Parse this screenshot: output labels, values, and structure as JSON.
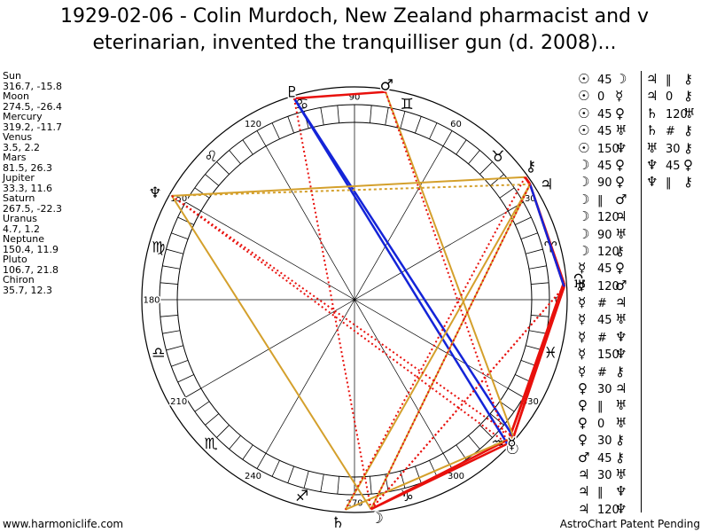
{
  "title": {
    "line1": "1929-02-06 - Colin Murdoch, New Zealand pharmacist and v",
    "line2": "eterinarian, invented the tranquilliser gun (d. 2008)..."
  },
  "planets": [
    {
      "name": "Sun",
      "pos": "316.7, -15.8"
    },
    {
      "name": "Moon",
      "pos": "274.5, -26.4"
    },
    {
      "name": "Mercury",
      "pos": "319.2, -11.7"
    },
    {
      "name": "Venus",
      "pos": "3.5, 2.2"
    },
    {
      "name": "Mars",
      "pos": "81.5, 26.3"
    },
    {
      "name": "Jupiter",
      "pos": "33.3, 11.6"
    },
    {
      "name": "Saturn",
      "pos": "267.5, -22.3"
    },
    {
      "name": "Uranus",
      "pos": "4.7, 1.2"
    },
    {
      "name": "Neptune",
      "pos": "150.4, 11.9"
    },
    {
      "name": "Pluto",
      "pos": "106.7, 21.8"
    },
    {
      "name": "Chiron",
      "pos": "35.7, 12.3"
    }
  ],
  "wheel_degree_labels": [
    "0",
    "30",
    "60",
    "90",
    "120",
    "150",
    "180",
    "210",
    "240",
    "270",
    "300",
    "330"
  ],
  "aspects_col1": [
    {
      "p1": "☉",
      "angle": "45",
      "p2": "☽"
    },
    {
      "p1": "☉",
      "angle": "0",
      "p2": "☿"
    },
    {
      "p1": "☉",
      "angle": "45",
      "p2": "♀"
    },
    {
      "p1": "☉",
      "angle": "45",
      "p2": "♅"
    },
    {
      "p1": "☉",
      "angle": "150",
      "p2": "♆"
    },
    {
      "p1": "☽",
      "angle": "45",
      "p2": "♀"
    },
    {
      "p1": "☽",
      "angle": "90",
      "p2": "♀"
    },
    {
      "p1": "☽",
      "angle": "‖",
      "p2": "♂"
    },
    {
      "p1": "☽",
      "angle": "120",
      "p2": "♃"
    },
    {
      "p1": "☽",
      "angle": "90",
      "p2": "♅"
    },
    {
      "p1": "☽",
      "angle": "120",
      "p2": "⚷"
    },
    {
      "p1": "☿",
      "angle": "45",
      "p2": "♀"
    },
    {
      "p1": "☿",
      "angle": "120",
      "p2": "♂"
    },
    {
      "p1": "☿",
      "angle": "#",
      "p2": "♃"
    },
    {
      "p1": "☿",
      "angle": "45",
      "p2": "♅"
    },
    {
      "p1": "☿",
      "angle": "#",
      "p2": "♆"
    },
    {
      "p1": "☿",
      "angle": "150",
      "p2": "♆"
    },
    {
      "p1": "☿",
      "angle": "#",
      "p2": "⚷"
    },
    {
      "p1": "♀",
      "angle": "30",
      "p2": "♃"
    },
    {
      "p1": "♀",
      "angle": "‖",
      "p2": "♅"
    },
    {
      "p1": "♀",
      "angle": "0",
      "p2": "♅"
    },
    {
      "p1": "♀",
      "angle": "30",
      "p2": "⚷"
    },
    {
      "p1": "♂",
      "angle": "45",
      "p2": "⚷"
    },
    {
      "p1": "♃",
      "angle": "30",
      "p2": "♅"
    },
    {
      "p1": "♃",
      "angle": "‖",
      "p2": "♆"
    },
    {
      "p1": "♃",
      "angle": "120",
      "p2": "♆"
    }
  ],
  "aspects_col2": [
    {
      "p1": "♃",
      "angle": "‖",
      "p2": "⚷"
    },
    {
      "p1": "♃",
      "angle": "0",
      "p2": "⚷"
    },
    {
      "p1": "♄",
      "angle": "120",
      "p2": "♅"
    },
    {
      "p1": "♄",
      "angle": "#",
      "p2": "⚷"
    },
    {
      "p1": "♅",
      "angle": "30",
      "p2": "⚷"
    },
    {
      "p1": "♆",
      "angle": "45",
      "p2": "♀"
    },
    {
      "p1": "♆",
      "angle": "‖",
      "p2": "⚷"
    }
  ],
  "footer": {
    "left": "www.harmoniclife.com",
    "right": "AstroChart Patent Pending"
  }
}
